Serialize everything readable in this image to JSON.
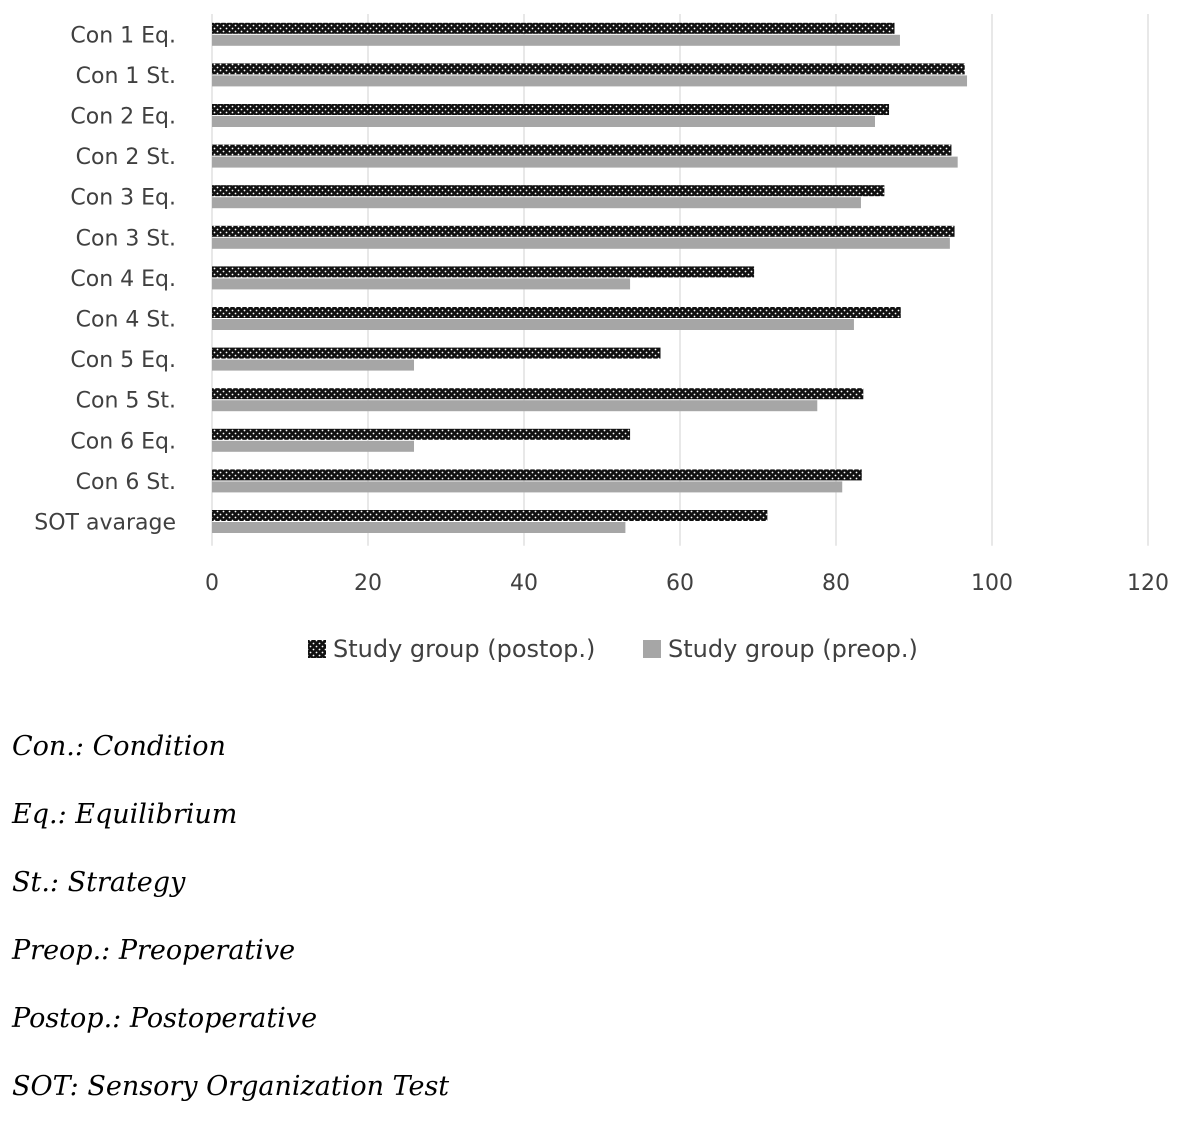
{
  "chart_data": {
    "type": "bar",
    "orientation": "horizontal",
    "categories": [
      "Con 1 Eq.",
      "Con 1 St.",
      "Con 2 Eq.",
      "Con 2 St.",
      "Con 3 Eq.",
      "Con 3 St.",
      "Con 4 Eq.",
      "Con 4 St.",
      "Con 5 Eq.",
      "Con 5 St.",
      "Con 6 Eq.",
      "Con 6 St.",
      "SOT avarage"
    ],
    "series": [
      {
        "name": "Study group (postop.)",
        "pattern": "dotted-black",
        "color": "#111111",
        "values": [
          87.5,
          96.5,
          86.8,
          94.8,
          86.2,
          95.2,
          69.5,
          88.3,
          57.5,
          83.5,
          53.6,
          83.3,
          71.2
        ]
      },
      {
        "name": "Study group (preop.)",
        "pattern": "solid-gray",
        "color": "#a6a6a6",
        "values": [
          88.2,
          96.8,
          85.0,
          95.6,
          83.2,
          94.6,
          53.6,
          82.3,
          25.9,
          77.6,
          25.9,
          80.8,
          53.0
        ]
      }
    ],
    "xlim": [
      0,
      120
    ],
    "xticks": [
      0,
      20,
      40,
      60,
      80,
      100,
      120
    ],
    "grid": "vertical",
    "legend": "bottom",
    "title": "",
    "xlabel": "",
    "ylabel": ""
  },
  "notes": [
    "Con.: Condition",
    "Eq.: Equilibrium",
    "St.: Strategy",
    "Preop.: Preoperative",
    "Postop.: Postoperative",
    "SOT: Sensory Organization Test"
  ]
}
